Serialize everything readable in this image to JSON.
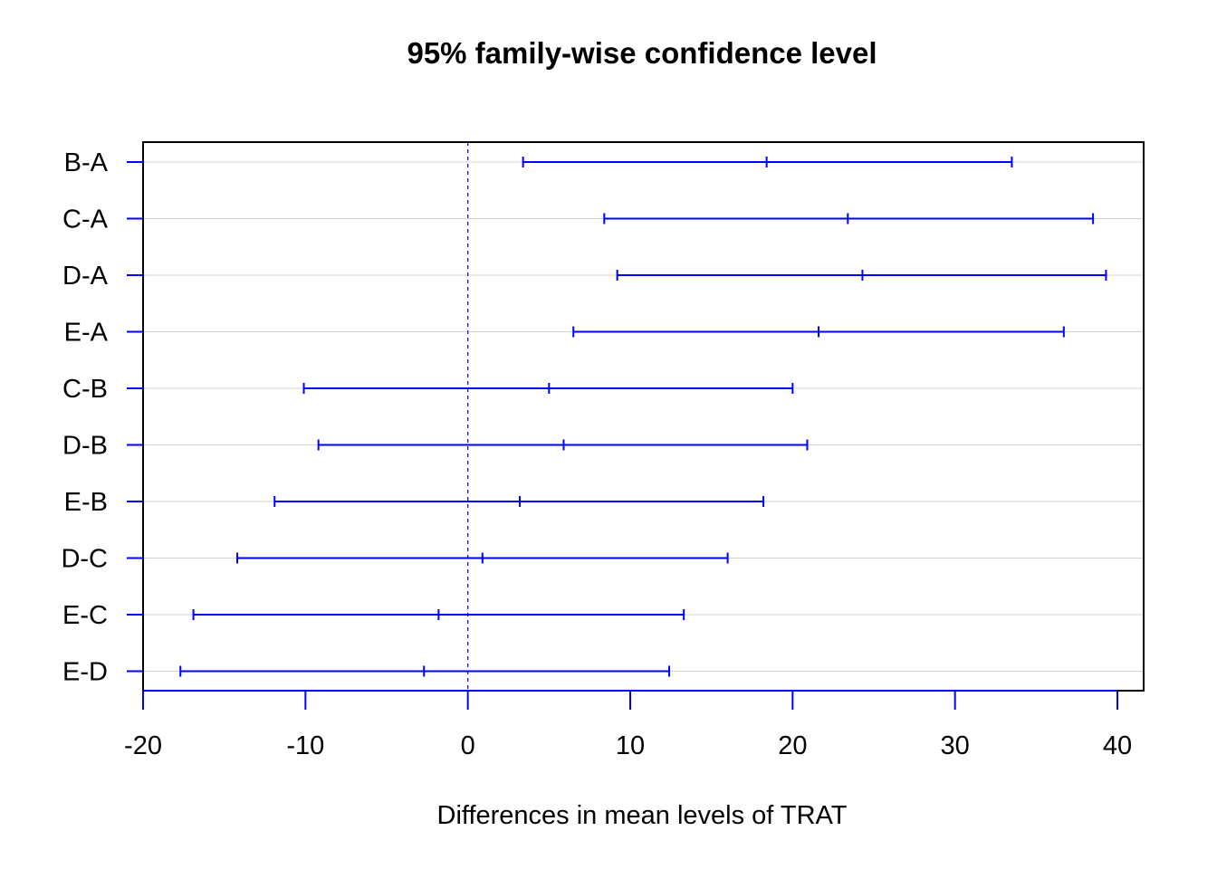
{
  "chart_data": {
    "type": "interval",
    "title": "95% family-wise confidence level",
    "xlabel": "Differences in mean levels of TRAT",
    "ylabel": "",
    "xlim": [
      -20,
      40
    ],
    "xticks": [
      -20,
      -10,
      0,
      10,
      20,
      30,
      40
    ],
    "reference_line": 0,
    "grid": "horizontal",
    "comparisons": [
      {
        "label": "B-A",
        "lower": 3.4,
        "estimate": 18.4,
        "upper": 33.5
      },
      {
        "label": "C-A",
        "lower": 8.4,
        "estimate": 23.4,
        "upper": 38.5
      },
      {
        "label": "D-A",
        "lower": 9.2,
        "estimate": 24.3,
        "upper": 39.3
      },
      {
        "label": "E-A",
        "lower": 6.5,
        "estimate": 21.6,
        "upper": 36.7
      },
      {
        "label": "C-B",
        "lower": -10.1,
        "estimate": 5.0,
        "upper": 20.0
      },
      {
        "label": "D-B",
        "lower": -9.2,
        "estimate": 5.9,
        "upper": 20.9
      },
      {
        "label": "E-B",
        "lower": -11.9,
        "estimate": 3.2,
        "upper": 18.2
      },
      {
        "label": "D-C",
        "lower": -14.2,
        "estimate": 0.9,
        "upper": 16.0
      },
      {
        "label": "E-C",
        "lower": -16.9,
        "estimate": -1.8,
        "upper": 13.3
      },
      {
        "label": "E-D",
        "lower": -17.7,
        "estimate": -2.7,
        "upper": 12.4
      }
    ],
    "colors": {
      "interval": "#0000ff",
      "reference": "#0000ff",
      "grid": "#d3d3d3",
      "frame": "#000000"
    }
  }
}
